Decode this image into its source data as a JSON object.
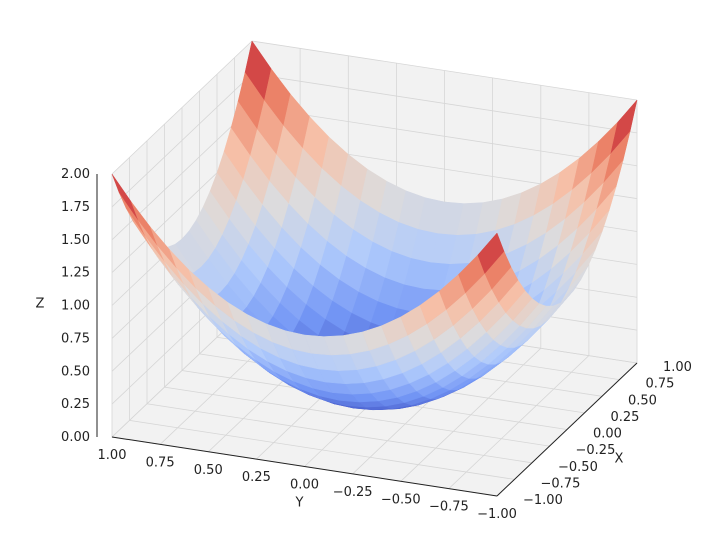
{
  "chart_data": {
    "type": "surface",
    "function": "z = x^2 + y^2",
    "colormap": "coolwarm",
    "colormap_colors": [
      "#3b4cc0",
      "#7396f5",
      "#b0cbfc",
      "#dddcdc",
      "#f6bfa6",
      "#ea7b60",
      "#b40426"
    ],
    "title": "",
    "xlabel": "X",
    "ylabel": "Y",
    "zlabel": "Z",
    "xlim": [
      -1.0,
      1.0
    ],
    "ylim": [
      -1.0,
      1.0
    ],
    "zlim": [
      0.0,
      2.0
    ],
    "x_ticks": [
      "−1.00",
      "−0.75",
      "−0.50",
      "−0.25",
      "0.00",
      "0.25",
      "0.50",
      "0.75",
      "1.00"
    ],
    "y_ticks": [
      "−1.00",
      "−0.75",
      "−0.50",
      "−0.25",
      "0.00",
      "0.25",
      "0.50",
      "0.75",
      "1.00"
    ],
    "z_ticks": [
      "0.00",
      "0.25",
      "0.50",
      "0.75",
      "1.00",
      "1.25",
      "1.50",
      "1.75",
      "2.00"
    ],
    "grid": true,
    "x_values": [
      -1.0,
      -0.9,
      -0.8,
      -0.7,
      -0.6,
      -0.5,
      -0.4,
      -0.3,
      -0.2,
      -0.1,
      0.0,
      0.1,
      0.2,
      0.3,
      0.4,
      0.5,
      0.6,
      0.7,
      0.8,
      0.9,
      1.0
    ],
    "y_values": [
      -1.0,
      -0.9,
      -0.8,
      -0.7,
      -0.6,
      -0.5,
      -0.4,
      -0.3,
      -0.2,
      -0.1,
      0.0,
      0.1,
      0.2,
      0.3,
      0.4,
      0.5,
      0.6,
      0.7,
      0.8,
      0.9,
      1.0
    ]
  }
}
